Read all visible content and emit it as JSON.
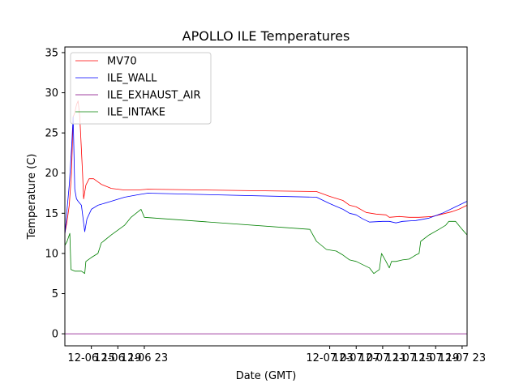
{
  "chart_data": {
    "type": "line",
    "title": "APOLLO ILE Temperatures",
    "xlabel": "Date (GMT)",
    "ylabel": "Temperature (C)",
    "xlim": [
      "2012-06-06 11:00",
      "2012-07-07 23:45"
    ],
    "x_ticks": [
      {
        "at": "2012-06-06 15:00",
        "label": "12-06 15"
      },
      {
        "at": "2012-06-06 19:00",
        "label": "12-06 19"
      },
      {
        "at": "2012-06-06 23:00",
        "label": "12-06 23"
      },
      {
        "at": "2012-07-07 03:00",
        "label": "12-07 03"
      },
      {
        "at": "2012-07-07 07:00",
        "label": "12-07 07"
      },
      {
        "at": "2012-07-07 11:00",
        "label": "12-07 11"
      },
      {
        "at": "2012-07-07 15:00",
        "label": "12-07 15"
      },
      {
        "at": "2012-07-07 19:00",
        "label": "12-07 19"
      },
      {
        "at": "2012-07-07 23:00",
        "label": "12-07 23"
      }
    ],
    "ylim": [
      -1.5,
      35.7
    ],
    "y_ticks": [
      0,
      5,
      10,
      15,
      20,
      25,
      30,
      35
    ],
    "grid": false,
    "legend_position": "top-left",
    "series": [
      {
        "name": "MV70",
        "color": "#ff0000",
        "points": [
          [
            "2012-06-06 11:00",
            12.5
          ],
          [
            "2012-06-06 11:20",
            14.0
          ],
          [
            "2012-06-06 11:40",
            16.0
          ],
          [
            "2012-06-06 12:00",
            20.0
          ],
          [
            "2012-06-06 12:15",
            27.0
          ],
          [
            "2012-06-06 12:30",
            27.5
          ],
          [
            "2012-06-06 12:45",
            28.5
          ],
          [
            "2012-06-06 13:00",
            29.0
          ],
          [
            "2012-06-06 13:15",
            27.0
          ],
          [
            "2012-06-06 13:40",
            20.0
          ],
          [
            "2012-06-06 13:50",
            16.8
          ],
          [
            "2012-06-06 14:10",
            18.5
          ],
          [
            "2012-06-06 14:40",
            19.3
          ],
          [
            "2012-06-06 15:20",
            19.3
          ],
          [
            "2012-06-06 16:30",
            18.6
          ],
          [
            "2012-06-06 18:00",
            18.1
          ],
          [
            "2012-06-06 20:00",
            17.9
          ],
          [
            "2012-06-06 22:00",
            17.9
          ],
          [
            "2012-06-06 23:30",
            18.0
          ],
          [
            "2012-07-07 01:00",
            17.7
          ],
          [
            "2012-07-07 03:00",
            17.1
          ],
          [
            "2012-07-07 05:00",
            16.6
          ],
          [
            "2012-07-07 06:00",
            16.0
          ],
          [
            "2012-07-07 07:00",
            15.8
          ],
          [
            "2012-07-07 08:30",
            15.1
          ],
          [
            "2012-07-07 10:00",
            14.9
          ],
          [
            "2012-07-07 11:30",
            14.8
          ],
          [
            "2012-07-07 12:00",
            14.5
          ],
          [
            "2012-07-07 13:30",
            14.6
          ],
          [
            "2012-07-07 15:00",
            14.5
          ],
          [
            "2012-07-07 16:30",
            14.5
          ],
          [
            "2012-07-07 18:30",
            14.6
          ],
          [
            "2012-07-07 20:00",
            14.9
          ],
          [
            "2012-07-07 21:30",
            15.2
          ],
          [
            "2012-07-07 22:30",
            15.5
          ],
          [
            "2012-07-07 23:45",
            16.0
          ]
        ]
      },
      {
        "name": "ILE_WALL",
        "color": "#0000ff",
        "points": [
          [
            "2012-06-06 11:00",
            12.3
          ],
          [
            "2012-06-06 11:20",
            15.5
          ],
          [
            "2012-06-06 11:40",
            18.5
          ],
          [
            "2012-06-06 12:00",
            23.0
          ],
          [
            "2012-06-06 12:15",
            27.0
          ],
          [
            "2012-06-06 12:30",
            18.0
          ],
          [
            "2012-06-06 12:45",
            16.8
          ],
          [
            "2012-06-06 13:00",
            16.5
          ],
          [
            "2012-06-06 13:30",
            16.0
          ],
          [
            "2012-06-06 14:00",
            12.7
          ],
          [
            "2012-06-06 14:20",
            14.3
          ],
          [
            "2012-06-06 15:00",
            15.5
          ],
          [
            "2012-06-06 16:00",
            16.0
          ],
          [
            "2012-06-06 18:00",
            16.5
          ],
          [
            "2012-06-06 20:00",
            17.0
          ],
          [
            "2012-06-06 22:00",
            17.3
          ],
          [
            "2012-06-06 23:30",
            17.5
          ],
          [
            "2012-07-07 01:00",
            17.0
          ],
          [
            "2012-07-07 03:00",
            16.2
          ],
          [
            "2012-07-07 05:00",
            15.5
          ],
          [
            "2012-07-07 06:00",
            15.0
          ],
          [
            "2012-07-07 07:00",
            14.8
          ],
          [
            "2012-07-07 08:00",
            14.3
          ],
          [
            "2012-07-07 09:00",
            13.9
          ],
          [
            "2012-07-07 11:00",
            14.0
          ],
          [
            "2012-07-07 12:00",
            14.0
          ],
          [
            "2012-07-07 13:00",
            13.8
          ],
          [
            "2012-07-07 14:00",
            14.0
          ],
          [
            "2012-07-07 16:00",
            14.1
          ],
          [
            "2012-07-07 18:00",
            14.4
          ],
          [
            "2012-07-07 20:00",
            15.0
          ],
          [
            "2012-07-07 22:00",
            15.8
          ],
          [
            "2012-07-07 23:45",
            16.5
          ]
        ]
      },
      {
        "name": "ILE_EXHAUST_AIR",
        "color": "#800080",
        "points": [
          [
            "2012-06-06 11:00",
            0.0
          ],
          [
            "2012-07-07 23:45",
            0.0
          ]
        ]
      },
      {
        "name": "ILE_INTAKE",
        "color": "#008000",
        "points": [
          [
            "2012-06-06 11:00",
            11.0
          ],
          [
            "2012-06-06 11:20",
            11.5
          ],
          [
            "2012-06-06 11:45",
            12.5
          ],
          [
            "2012-06-06 11:55",
            8.0
          ],
          [
            "2012-06-06 12:30",
            7.8
          ],
          [
            "2012-06-06 13:30",
            7.8
          ],
          [
            "2012-06-06 14:00",
            7.5
          ],
          [
            "2012-06-06 14:10",
            9.0
          ],
          [
            "2012-06-06 15:00",
            9.5
          ],
          [
            "2012-06-06 16:00",
            10.0
          ],
          [
            "2012-06-06 16:30",
            11.3
          ],
          [
            "2012-06-06 18:00",
            12.3
          ],
          [
            "2012-06-06 20:00",
            13.5
          ],
          [
            "2012-06-06 21:00",
            14.5
          ],
          [
            "2012-06-06 22:30",
            15.5
          ],
          [
            "2012-06-06 23:00",
            14.5
          ],
          [
            "2012-07-07 00:00",
            13.0
          ],
          [
            "2012-07-07 01:00",
            11.5
          ],
          [
            "2012-07-07 02:30",
            10.5
          ],
          [
            "2012-07-07 04:00",
            10.3
          ],
          [
            "2012-07-07 05:00",
            9.8
          ],
          [
            "2012-07-07 06:00",
            9.2
          ],
          [
            "2012-07-07 07:00",
            9.0
          ],
          [
            "2012-07-07 08:00",
            8.6
          ],
          [
            "2012-07-07 09:00",
            8.2
          ],
          [
            "2012-07-07 09:40",
            7.5
          ],
          [
            "2012-07-07 10:30",
            8.0
          ],
          [
            "2012-07-07 10:50",
            10.0
          ],
          [
            "2012-07-07 11:30",
            9.0
          ],
          [
            "2012-07-07 12:00",
            8.2
          ],
          [
            "2012-07-07 12:20",
            9.0
          ],
          [
            "2012-07-07 13:00",
            9.0
          ],
          [
            "2012-07-07 14:00",
            9.2
          ],
          [
            "2012-07-07 15:00",
            9.3
          ],
          [
            "2012-07-07 16:00",
            9.8
          ],
          [
            "2012-07-07 16:30",
            10.0
          ],
          [
            "2012-07-07 16:45",
            11.5
          ],
          [
            "2012-07-07 18:00",
            12.3
          ],
          [
            "2012-07-07 19:30",
            13.0
          ],
          [
            "2012-07-07 20:30",
            13.5
          ],
          [
            "2012-07-07 21:00",
            14.0
          ],
          [
            "2012-07-07 22:00",
            14.0
          ],
          [
            "2012-07-07 23:00",
            13.0
          ],
          [
            "2012-07-07 23:45",
            12.3
          ]
        ]
      }
    ]
  }
}
